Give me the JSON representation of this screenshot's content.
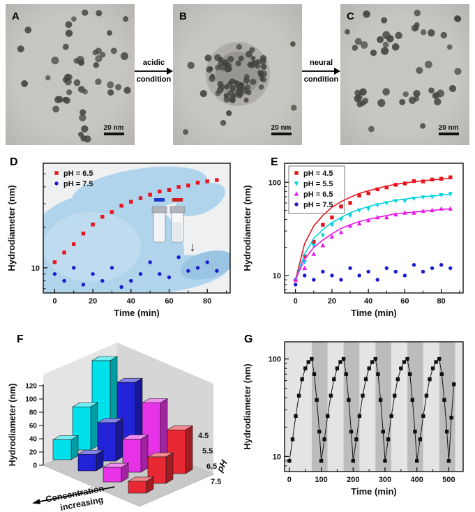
{
  "tem_panels": [
    {
      "label": "A",
      "scalebar": "20 nm"
    },
    {
      "label": "B",
      "scalebar": "20 nm"
    },
    {
      "label": "C",
      "scalebar": "20 nm"
    }
  ],
  "arrows": [
    {
      "top": "acidic",
      "bottom": "condition"
    },
    {
      "top": "neural",
      "bottom": "condition"
    }
  ],
  "panel_labels": {
    "d": "D",
    "e": "E",
    "f": "F",
    "g": "G"
  },
  "inset": {
    "left_bar_color": "#2038cc",
    "right_bar_color": "#cc2020",
    "arrow_glyph": "↓"
  },
  "chart_data": [
    {
      "panel": "D",
      "type": "scatter",
      "log_y": true,
      "xlabel": "Time (min)",
      "ylabel": "Hydrodiameter (nm)",
      "xlim": [
        -6,
        92
      ],
      "ylim": [
        6.5,
        60
      ],
      "xticks": [
        0,
        20,
        40,
        60,
        80
      ],
      "yticks": [
        10
      ],
      "legend": true,
      "legend_boxed": false,
      "legend_position": "top-left",
      "series": [
        {
          "name": "pH = 6.5",
          "color": "#e8131c",
          "marker": "square",
          "x": [
            0,
            5,
            10,
            15,
            20,
            25,
            30,
            35,
            40,
            45,
            50,
            55,
            60,
            65,
            70,
            75,
            80,
            85
          ],
          "y": [
            11,
            13,
            15,
            18,
            21,
            24,
            26,
            29,
            31,
            33,
            35,
            37,
            38,
            40,
            41,
            43,
            44,
            45
          ]
        },
        {
          "name": "pH = 7.5",
          "color": "#1a1ad0",
          "marker": "circle",
          "x": [
            0,
            5,
            10,
            15,
            20,
            25,
            30,
            35,
            40,
            45,
            50,
            55,
            60,
            65,
            70,
            75,
            80,
            85
          ],
          "y": [
            9,
            8,
            10,
            7.5,
            9,
            8,
            10,
            7.2,
            8,
            9,
            11,
            9,
            8.5,
            12,
            9.5,
            10,
            11,
            9.5
          ]
        }
      ]
    },
    {
      "panel": "E",
      "type": "scatter",
      "log_y": true,
      "xlabel": "Time (min)",
      "ylabel": "Hydrodiameter (nm)",
      "xlim": [
        -6,
        92
      ],
      "ylim": [
        6.5,
        160
      ],
      "xticks": [
        0,
        20,
        40,
        60,
        80
      ],
      "yticks": [
        10,
        100
      ],
      "legend": true,
      "legend_boxed": true,
      "legend_position": "top-left",
      "series": [
        {
          "name": "pH = 4.5",
          "color": "#e8131c",
          "marker": "square",
          "x": [
            0,
            5,
            10,
            15,
            20,
            25,
            30,
            35,
            40,
            45,
            50,
            55,
            60,
            65,
            70,
            75,
            80,
            85
          ],
          "y": [
            9,
            16,
            23,
            35,
            42,
            55,
            60,
            72,
            76,
            84,
            88,
            94,
            97,
            103,
            102,
            107,
            109,
            113
          ],
          "fit_y": [
            9,
            22,
            34,
            44,
            54,
            62,
            69,
            76,
            81,
            86,
            91,
            95,
            98,
            101,
            104,
            106,
            108,
            110
          ]
        },
        {
          "name": "pH = 5.5",
          "color": "#00d4de",
          "marker": "triangle-down",
          "x": [
            0,
            5,
            10,
            15,
            20,
            25,
            30,
            35,
            40,
            45,
            50,
            55,
            60,
            65,
            70,
            75,
            80,
            85
          ],
          "y": [
            9,
            14,
            21,
            27,
            35,
            40,
            44,
            50,
            52,
            57,
            60,
            63,
            63,
            67,
            69,
            70,
            73,
            75
          ],
          "fit_y": [
            9,
            17,
            25,
            31,
            37,
            42,
            47,
            51,
            55,
            58,
            61,
            64,
            66,
            68,
            70,
            71,
            73,
            74
          ]
        },
        {
          "name": "pH = 6.5",
          "color": "#e818e8",
          "marker": "triangle-up",
          "x": [
            0,
            5,
            10,
            15,
            20,
            25,
            30,
            35,
            40,
            45,
            50,
            55,
            60,
            65,
            70,
            75,
            80,
            85
          ],
          "y": [
            9,
            12,
            17,
            21,
            26,
            29,
            34,
            36,
            39,
            42,
            42,
            45,
            47,
            47,
            49,
            50,
            52,
            52
          ],
          "fit_y": [
            9,
            15,
            20,
            24,
            28,
            32,
            35,
            38,
            40,
            42,
            44,
            46,
            47,
            48,
            49,
            50,
            51,
            52
          ]
        },
        {
          "name": "pH = 7.5",
          "color": "#1a1ad0",
          "marker": "circle",
          "x": [
            0,
            5,
            10,
            15,
            20,
            25,
            30,
            35,
            40,
            45,
            50,
            55,
            60,
            65,
            70,
            75,
            80,
            85
          ],
          "y": [
            8,
            10,
            9,
            11,
            10,
            9,
            12,
            10,
            11,
            9,
            12,
            11,
            10,
            13,
            11,
            12,
            13,
            12
          ]
        }
      ]
    },
    {
      "panel": "F",
      "type": "bar3d",
      "ylabel": "Hydrodiameter (nm)",
      "yticks": [
        0,
        20,
        40,
        60,
        80,
        100,
        120
      ],
      "ylim": [
        0,
        120
      ],
      "depth_axis_label": "pH",
      "x_axis_label_line1": "Concentration",
      "x_axis_label_line2": "increasing",
      "rows": [
        {
          "ph": "4.5",
          "color": "#00e0ea",
          "values": [
            30,
            65,
            120
          ]
        },
        {
          "ph": "5.5",
          "color": "#2222d8",
          "values": [
            25,
            58,
            104
          ]
        },
        {
          "ph": "6.5",
          "color": "#e832e8",
          "values": [
            22,
            50,
            90
          ]
        },
        {
          "ph": "7.5",
          "color": "#e82832",
          "values": [
            18,
            40,
            66
          ]
        }
      ]
    },
    {
      "panel": "G",
      "type": "scatter",
      "log_y": true,
      "xlabel": "Time (min)",
      "ylabel": "Hydrodiameter (nm)",
      "xlim": [
        -15,
        545
      ],
      "ylim": [
        7,
        150
      ],
      "xticks": [
        0,
        100,
        200,
        300,
        400,
        500
      ],
      "yticks": [
        10,
        100
      ],
      "legend": false,
      "bands": [
        {
          "x0": -15,
          "x1": 70,
          "color": "#e4e4e4"
        },
        {
          "x0": 70,
          "x1": 120,
          "color": "#bcbcbc"
        },
        {
          "x0": 120,
          "x1": 170,
          "color": "#e4e4e4"
        },
        {
          "x0": 170,
          "x1": 220,
          "color": "#bcbcbc"
        },
        {
          "x0": 220,
          "x1": 270,
          "color": "#e4e4e4"
        },
        {
          "x0": 270,
          "x1": 320,
          "color": "#bcbcbc"
        },
        {
          "x0": 320,
          "x1": 370,
          "color": "#e4e4e4"
        },
        {
          "x0": 370,
          "x1": 420,
          "color": "#bcbcbc"
        },
        {
          "x0": 420,
          "x1": 470,
          "color": "#e4e4e4"
        },
        {
          "x0": 470,
          "x1": 520,
          "color": "#bcbcbc"
        },
        {
          "x0": 520,
          "x1": 545,
          "color": "#e4e4e4"
        }
      ],
      "series": [
        {
          "name": "",
          "color": "#111111",
          "marker": "square",
          "connect": true,
          "x": [
            0,
            10,
            20,
            30,
            40,
            50,
            60,
            70,
            78,
            86,
            94,
            100,
            110,
            120,
            130,
            140,
            150,
            160,
            170,
            178,
            186,
            194,
            200,
            210,
            220,
            230,
            240,
            250,
            260,
            270,
            278,
            286,
            294,
            300,
            310,
            320,
            330,
            340,
            350,
            360,
            370,
            378,
            386,
            394,
            400,
            410,
            420,
            430,
            440,
            450,
            460,
            470,
            478,
            486,
            494,
            500,
            508,
            516
          ],
          "y": [
            9,
            15,
            26,
            42,
            62,
            80,
            93,
            100,
            70,
            38,
            18,
            9,
            15,
            26,
            42,
            62,
            80,
            93,
            100,
            70,
            38,
            18,
            9,
            15,
            26,
            42,
            62,
            80,
            93,
            100,
            70,
            38,
            18,
            9,
            15,
            26,
            42,
            62,
            80,
            93,
            100,
            70,
            38,
            18,
            9,
            15,
            26,
            42,
            62,
            80,
            93,
            100,
            70,
            38,
            18,
            9,
            25,
            55
          ]
        }
      ]
    }
  ]
}
